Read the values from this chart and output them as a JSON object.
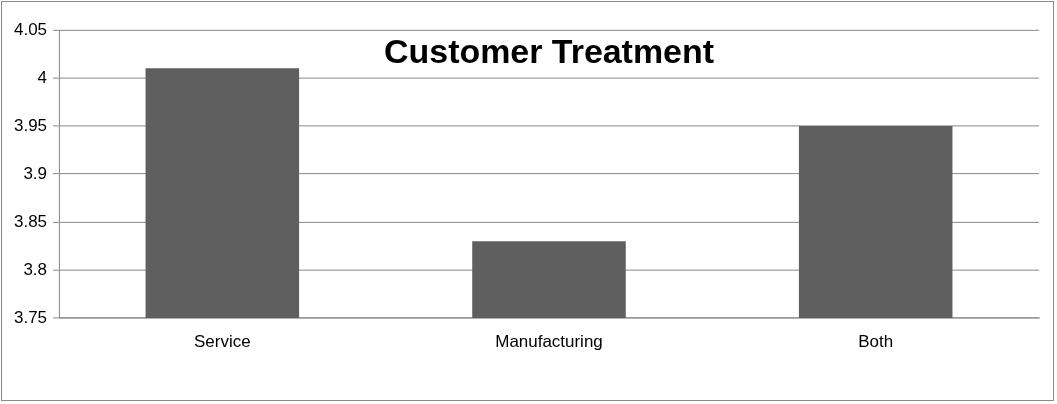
{
  "chart_data": {
    "type": "bar",
    "title": "Customer Treatment",
    "categories": [
      "Service",
      "Manufacturing",
      "Both"
    ],
    "values": [
      4.01,
      3.83,
      3.95
    ],
    "color": "#5f5f5f",
    "ylim": [
      3.75,
      4.05
    ],
    "yticks": [
      3.75,
      3.8,
      3.85,
      3.9,
      3.95,
      4,
      4.05
    ],
    "grid": "y",
    "legend": false
  }
}
